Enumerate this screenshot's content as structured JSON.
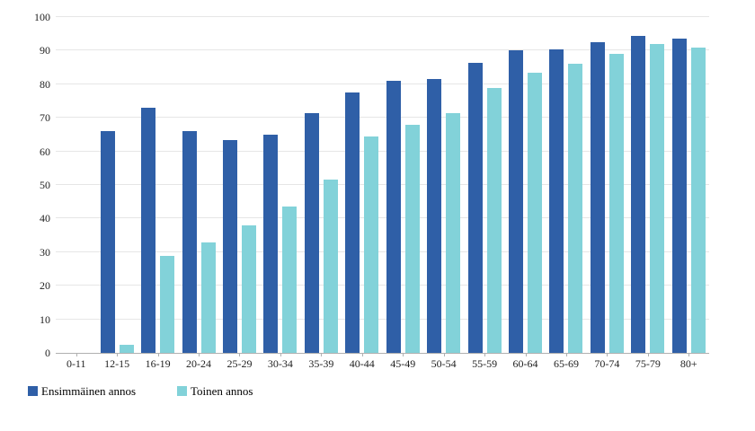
{
  "chart_data": {
    "type": "bar",
    "title": "",
    "xlabel": "",
    "ylabel": "",
    "ylim": [
      0,
      100
    ],
    "yticks": [
      0,
      10,
      20,
      30,
      40,
      50,
      60,
      70,
      80,
      90,
      100
    ],
    "grid": "horizontal",
    "legend_position": "bottom-left",
    "categories": [
      "0-11",
      "12-15",
      "16-19",
      "20-24",
      "25-29",
      "30-34",
      "35-39",
      "40-44",
      "45-49",
      "50-54",
      "55-59",
      "60-64",
      "65-69",
      "70-74",
      "75-79",
      "80+"
    ],
    "series": [
      {
        "name": "Ensimmäinen annos",
        "color": "#2f5fa7",
        "values": [
          0,
          66,
          73,
          66,
          63.5,
          65,
          71.5,
          77.5,
          81,
          81.5,
          86.5,
          90,
          90.5,
          92.5,
          94.5,
          93.5
        ]
      },
      {
        "name": "Toinen annos",
        "color": "#82d2d9",
        "values": [
          0,
          2.5,
          29,
          33,
          38,
          43.5,
          51.5,
          64.5,
          68,
          71.5,
          79,
          83.5,
          86,
          89,
          92,
          91
        ]
      }
    ]
  },
  "legend": {
    "items": [
      {
        "label": "Ensimmäinen annos",
        "color": "#2f5fa7"
      },
      {
        "label": "Toinen annos",
        "color": "#82d2d9"
      }
    ]
  },
  "colors": {
    "background": "#ffffff",
    "gridline": "#e6e6e6",
    "axis_line": "#b0b0b0",
    "label_text": "#1f1f1f"
  }
}
